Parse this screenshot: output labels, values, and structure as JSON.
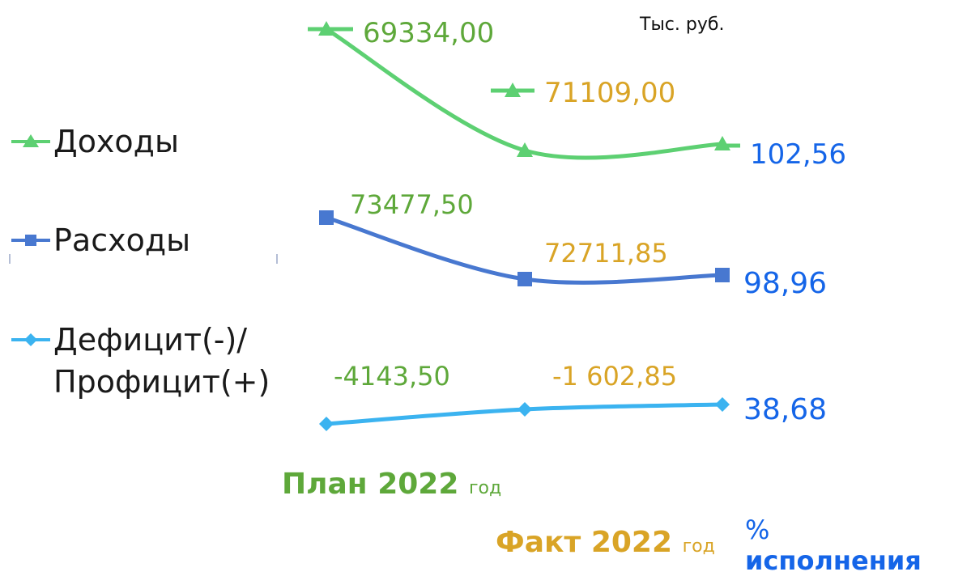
{
  "unit_label": "Тыс. руб.",
  "legend": [
    {
      "label": "Доходы",
      "color": "#5dd072",
      "marker": "triangle"
    },
    {
      "label": "Расходы",
      "color": "#4878d0",
      "marker": "square"
    },
    {
      "label_line1": "Дефицит(-)/",
      "label_line2": "Профицит(+)",
      "color": "#3bb3f0",
      "marker": "diamond"
    }
  ],
  "x_labels": {
    "plan": {
      "bold": "План 2022",
      "suffix": "год",
      "color": "#5ea83a"
    },
    "fact": {
      "bold": "Факт 2022",
      "suffix": "год",
      "color": "#d9a426"
    },
    "pct": {
      "sign": "%",
      "bold": "исполнения",
      "color": "#1565e8"
    }
  },
  "chart_data": {
    "type": "line",
    "categories": [
      "План 2022 год",
      "Факт 2022 год",
      "% исполнения"
    ],
    "series": [
      {
        "name": "Доходы",
        "marker": "triangle",
        "color": "#5dd072",
        "labels": [
          "69334,00",
          "71109,00",
          "102,56"
        ]
      },
      {
        "name": "Расходы",
        "marker": "square",
        "color": "#4878d0",
        "labels": [
          "73477,50",
          "72711,85",
          "98,96"
        ]
      },
      {
        "name": "Дефицит(-)/ Профицит(+)",
        "marker": "diamond",
        "color": "#3bb3f0",
        "labels": [
          "-4143,50",
          "-1 602,85",
          "38,68"
        ]
      }
    ],
    "label_colors": [
      "#5ea83a",
      "#d9a426",
      "#1565e8"
    ]
  }
}
